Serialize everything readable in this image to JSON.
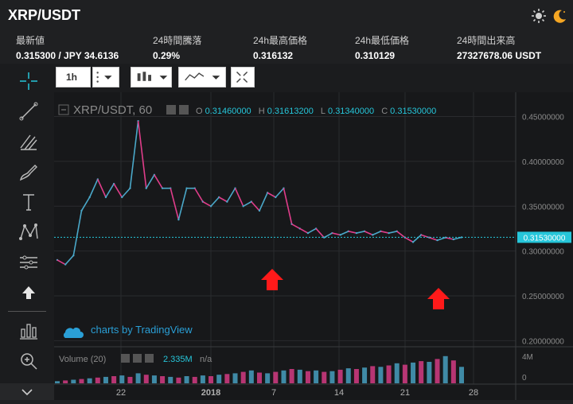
{
  "header": {
    "title": "XRP/USDT",
    "icons": [
      "sun-icon",
      "moon-icon"
    ]
  },
  "stats": [
    {
      "label": "最新値",
      "value": "0.315300 / JPY 34.6136"
    },
    {
      "label": "24時間騰落",
      "value": "0.29%"
    },
    {
      "label": "24h最高価格",
      "value": "0.316132"
    },
    {
      "label": "24h最低価格",
      "value": "0.310129"
    },
    {
      "label": "24時間出来高",
      "value": "27327678.06 USDT"
    }
  ],
  "toolbar": {
    "interval": "1h",
    "tools": [
      "crosshair-icon",
      "trendline-icon",
      "fib-icon",
      "brush-icon",
      "text-icon",
      "pattern-icon",
      "prediction-icon",
      "arrow-up-icon",
      "measure-icon",
      "zoom-icon"
    ]
  },
  "chart": {
    "symbol": "XRP/USDT, 60",
    "ohlc": [
      {
        "k": "O",
        "v": "0.31460000"
      },
      {
        "k": "H",
        "v": "0.31613200"
      },
      {
        "k": "L",
        "v": "0.31340000"
      },
      {
        "k": "C",
        "v": "0.31530000"
      }
    ],
    "price_label": "0.31530000",
    "watermark": "charts by TradingView",
    "volume_label": "Volume (20)",
    "volume_value": "2.335M",
    "volume_na": "n/a",
    "volume_axis": [
      "4M",
      "0"
    ],
    "colors": {
      "accent": "#26c6da",
      "price_line": "#26c6da",
      "up": "#4aa8c9",
      "down": "#e03d8a",
      "arrow": "#ff1a1a"
    }
  },
  "chart_data": {
    "type": "line",
    "title": "XRP/USDT, 60",
    "y_ticks": [
      "0.45000000",
      "0.40000000",
      "0.35000000",
      "0.30000000",
      "0.25000000",
      "0.20000000"
    ],
    "ylim": [
      0.195,
      0.47
    ],
    "x_ticks": [
      "22",
      "2018",
      "7",
      "14",
      "21",
      "28"
    ],
    "x": [
      0,
      2,
      4,
      6,
      8,
      10,
      12,
      14,
      16,
      18,
      20,
      22,
      24,
      26,
      28,
      30,
      32,
      34,
      36,
      38,
      40,
      42,
      44,
      46,
      48,
      50,
      52,
      54,
      56,
      58,
      60,
      62,
      64,
      66,
      68,
      70,
      72,
      74,
      76,
      78,
      80,
      82,
      84,
      86,
      88,
      90,
      92,
      94,
      96,
      98,
      100
    ],
    "values": [
      0.29,
      0.285,
      0.295,
      0.345,
      0.36,
      0.38,
      0.36,
      0.375,
      0.36,
      0.37,
      0.445,
      0.37,
      0.385,
      0.37,
      0.37,
      0.335,
      0.37,
      0.37,
      0.355,
      0.35,
      0.36,
      0.355,
      0.37,
      0.35,
      0.355,
      0.345,
      0.365,
      0.36,
      0.37,
      0.33,
      0.325,
      0.32,
      0.325,
      0.315,
      0.32,
      0.318,
      0.322,
      0.32,
      0.322,
      0.318,
      0.322,
      0.32,
      0.322,
      0.315,
      0.31,
      0.318,
      0.315,
      0.312,
      0.315,
      0.313,
      0.3153
    ],
    "volume": [
      0.3,
      0.4,
      0.5,
      0.6,
      0.7,
      0.8,
      0.9,
      1.0,
      1.1,
      0.9,
      1.4,
      1.2,
      1.1,
      1.0,
      0.9,
      0.8,
      1.0,
      0.9,
      1.1,
      1.0,
      1.2,
      1.3,
      1.4,
      1.6,
      1.8,
      1.5,
      1.4,
      1.6,
      1.8,
      2.0,
      1.9,
      1.7,
      1.8,
      1.6,
      1.7,
      1.9,
      2.1,
      2.0,
      2.2,
      2.4,
      2.3,
      2.5,
      2.8,
      2.6,
      2.9,
      3.1,
      3.0,
      3.4,
      3.8,
      3.2,
      2.3
    ],
    "volume_ylim": [
      0,
      4
    ],
    "grid": true
  }
}
